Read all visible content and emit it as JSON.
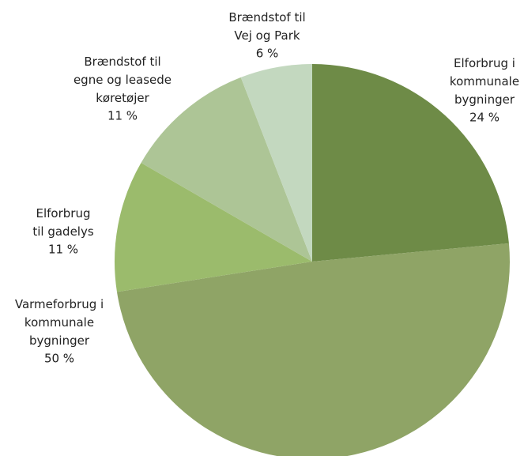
{
  "chart_data": {
    "type": "pie",
    "categories": [
      "Elforbrug i\nkommunale\nbygninger",
      "Varmeforbrug i\nkommunale\nbygninger",
      "Elforbrug\ntil gadelys",
      "Brændstof til\negne og leasede\nkøretøjer",
      "Brændstof til\nVej og Park"
    ],
    "values": [
      24,
      50,
      11,
      11,
      6
    ],
    "value_labels": [
      "24 %",
      "50 %",
      "11 %",
      "11 %",
      "6 %"
    ],
    "colors": [
      "#6e8b47",
      "#8fa466",
      "#9bbb6c",
      "#adc596",
      "#c3d8bf"
    ]
  }
}
